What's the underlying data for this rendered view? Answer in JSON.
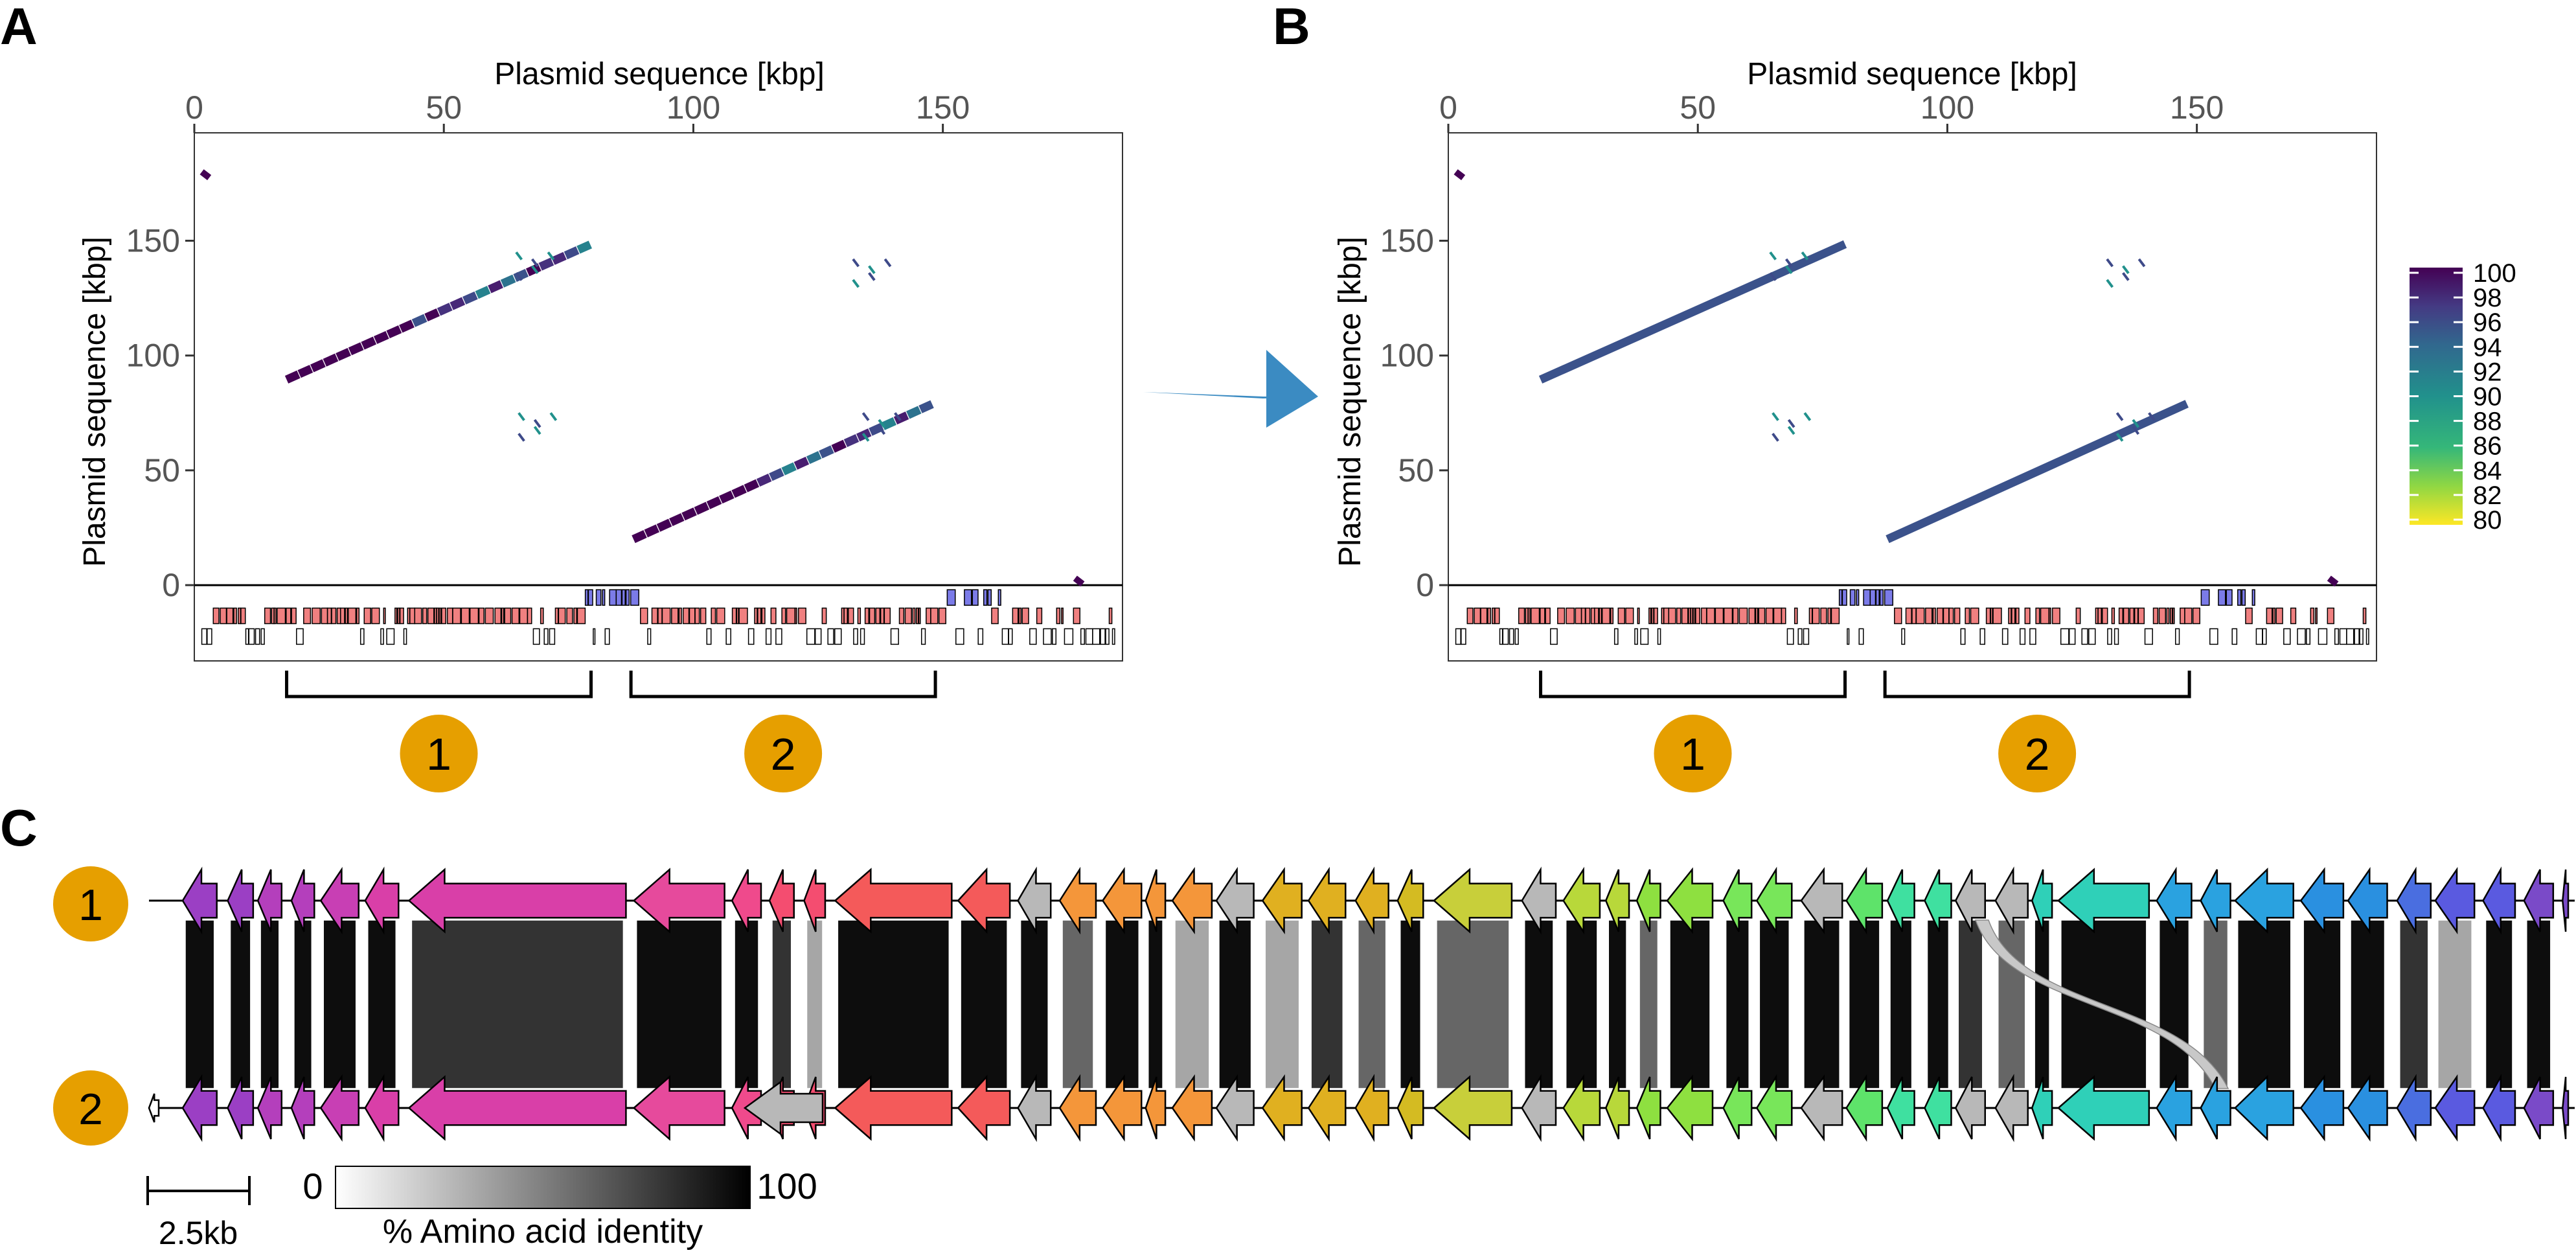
{
  "panels": {
    "a": {
      "letter": "A"
    },
    "b": {
      "letter": "B"
    },
    "c": {
      "letter": "C"
    }
  },
  "dotplot": {
    "x_title": "Plasmid sequence [kbp]",
    "y_title": "Plasmid sequence [kbp]",
    "x_ticks": [
      0,
      50,
      100,
      150
    ],
    "y_ticks": [
      0,
      50,
      100,
      150
    ],
    "x_tick_labels": [
      "0",
      "50",
      "100",
      "150"
    ],
    "y_tick_labels": [
      "0",
      "50",
      "100",
      "150"
    ],
    "x_range": [
      0,
      186
    ],
    "y_range": [
      -33,
      197
    ],
    "region_labels": [
      "1",
      "2"
    ],
    "regions_kbp": [
      [
        18.5,
        79.5
      ],
      [
        87.5,
        148.5
      ]
    ]
  },
  "legend": {
    "ticks": [
      "100",
      "98",
      "96",
      "94",
      "92",
      "90",
      "88",
      "86",
      "84",
      "82",
      "80"
    ],
    "colors": [
      "#440154",
      "#482878",
      "#3e4a89",
      "#31688e",
      "#26828e",
      "#1f9e89",
      "#35b779",
      "#6ece58",
      "#b5de2b",
      "#fde725"
    ]
  },
  "synteny": {
    "track_labels": [
      "1",
      "2"
    ],
    "scale_bar_label": "2.5kb",
    "identity_label": "% Amino acid identity",
    "identity_min": "0",
    "identity_max": "100",
    "badge_color": "#e69f00"
  }
}
